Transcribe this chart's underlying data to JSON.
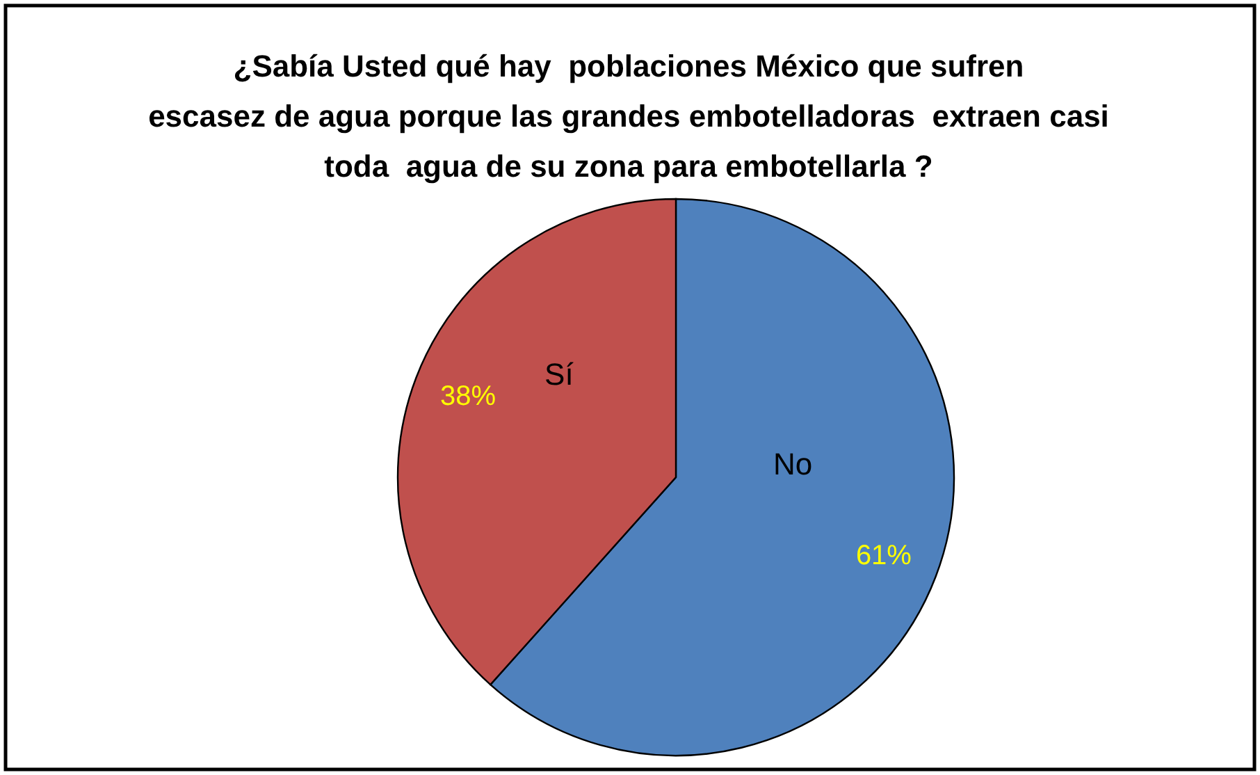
{
  "chart_data": {
    "type": "pie",
    "title": "¿Sabía Usted qué hay  poblaciones México que sufren\nescasez de agua porque las grandes embotelladoras  extraen casi\ntoda  agua de su zona para embotellarla ?",
    "categories": [
      "No",
      "Sí"
    ],
    "values": [
      61,
      38
    ],
    "value_labels": [
      "61%",
      "38%"
    ],
    "colors": [
      "#4f81bd",
      "#c0504d"
    ]
  }
}
